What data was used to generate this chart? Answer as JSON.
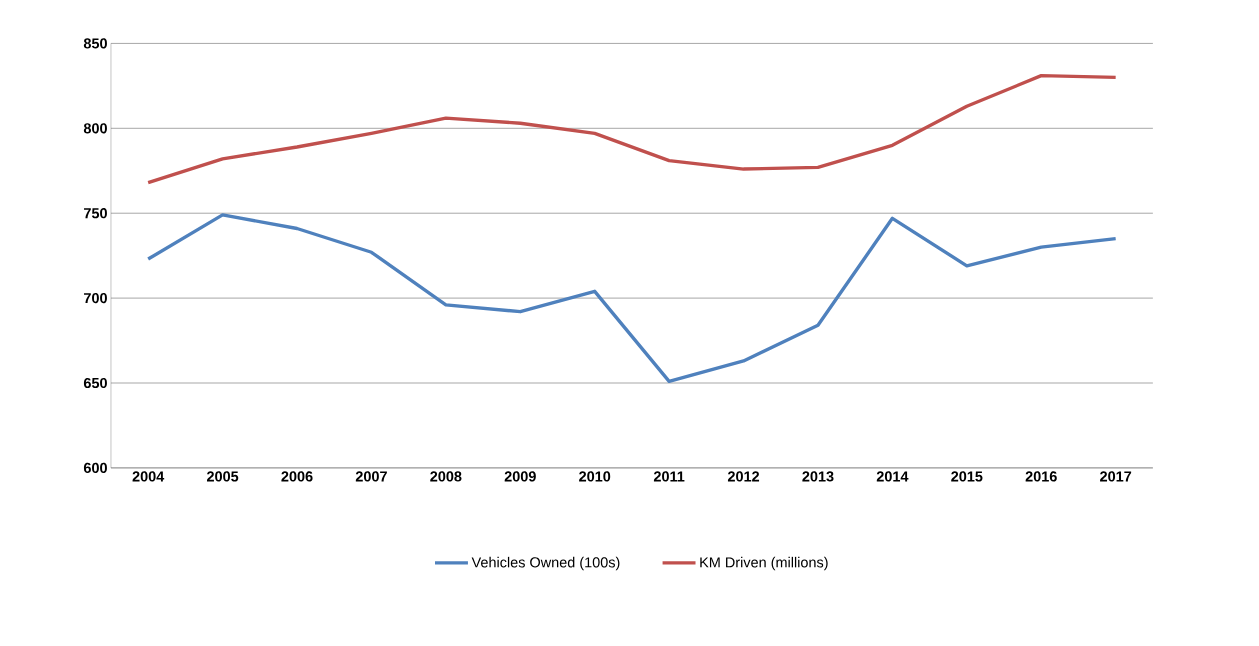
{
  "chart_data": {
    "type": "line",
    "categories": [
      "2004",
      "2005",
      "2006",
      "2007",
      "2008",
      "2009",
      "2010",
      "2011",
      "2012",
      "2013",
      "2014",
      "2015",
      "2016",
      "2017"
    ],
    "series": [
      {
        "name": "Vehicles Owned (100s)",
        "color": "#4f81bd",
        "values": [
          723,
          749,
          741,
          727,
          696,
          692,
          704,
          651,
          663,
          684,
          747,
          719,
          730,
          735
        ]
      },
      {
        "name": "KM Driven (millions)",
        "color": "#c0504d",
        "values": [
          768,
          782,
          789,
          797,
          806,
          803,
          797,
          781,
          776,
          777,
          790,
          813,
          831,
          830
        ]
      }
    ],
    "ylim": [
      600,
      850
    ],
    "yticks": [
      600,
      650,
      700,
      750,
      800,
      850
    ],
    "grid": "y",
    "legend": "bottom",
    "marker": "none",
    "line_style": "solid"
  }
}
